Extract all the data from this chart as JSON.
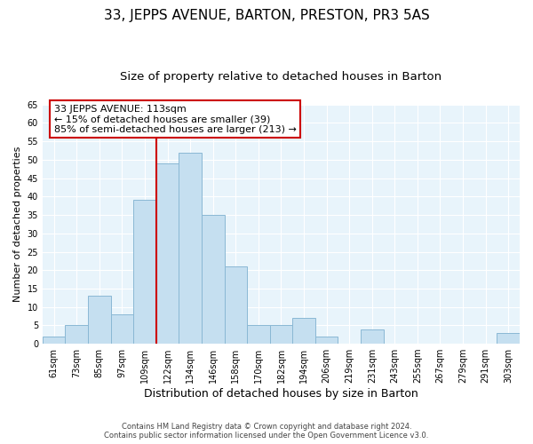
{
  "title": "33, JEPPS AVENUE, BARTON, PRESTON, PR3 5AS",
  "subtitle": "Size of property relative to detached houses in Barton",
  "xlabel": "Distribution of detached houses by size in Barton",
  "ylabel": "Number of detached properties",
  "bar_labels": [
    "61sqm",
    "73sqm",
    "85sqm",
    "97sqm",
    "109sqm",
    "122sqm",
    "134sqm",
    "146sqm",
    "158sqm",
    "170sqm",
    "182sqm",
    "194sqm",
    "206sqm",
    "219sqm",
    "231sqm",
    "243sqm",
    "255sqm",
    "267sqm",
    "279sqm",
    "291sqm",
    "303sqm"
  ],
  "bar_values": [
    2,
    5,
    13,
    8,
    39,
    49,
    52,
    35,
    21,
    5,
    5,
    7,
    2,
    0,
    4,
    0,
    0,
    0,
    0,
    0,
    3
  ],
  "bar_color": "#c5dff0",
  "bar_edge_color": "#8ab8d4",
  "vline_color": "#cc0000",
  "annotation_text": "33 JEPPS AVENUE: 113sqm\n← 15% of detached houses are smaller (39)\n85% of semi-detached houses are larger (213) →",
  "annotation_box_color": "white",
  "annotation_box_edge_color": "#cc0000",
  "ylim": [
    0,
    65
  ],
  "yticks": [
    0,
    5,
    10,
    15,
    20,
    25,
    30,
    35,
    40,
    45,
    50,
    55,
    60,
    65
  ],
  "footer_line1": "Contains HM Land Registry data © Crown copyright and database right 2024.",
  "footer_line2": "Contains public sector information licensed under the Open Government Licence v3.0.",
  "title_fontsize": 11,
  "subtitle_fontsize": 9.5,
  "xlabel_fontsize": 9,
  "ylabel_fontsize": 8,
  "tick_fontsize": 7,
  "annotation_fontsize": 8,
  "footer_fontsize": 6,
  "bg_color": "#e8f4fb"
}
